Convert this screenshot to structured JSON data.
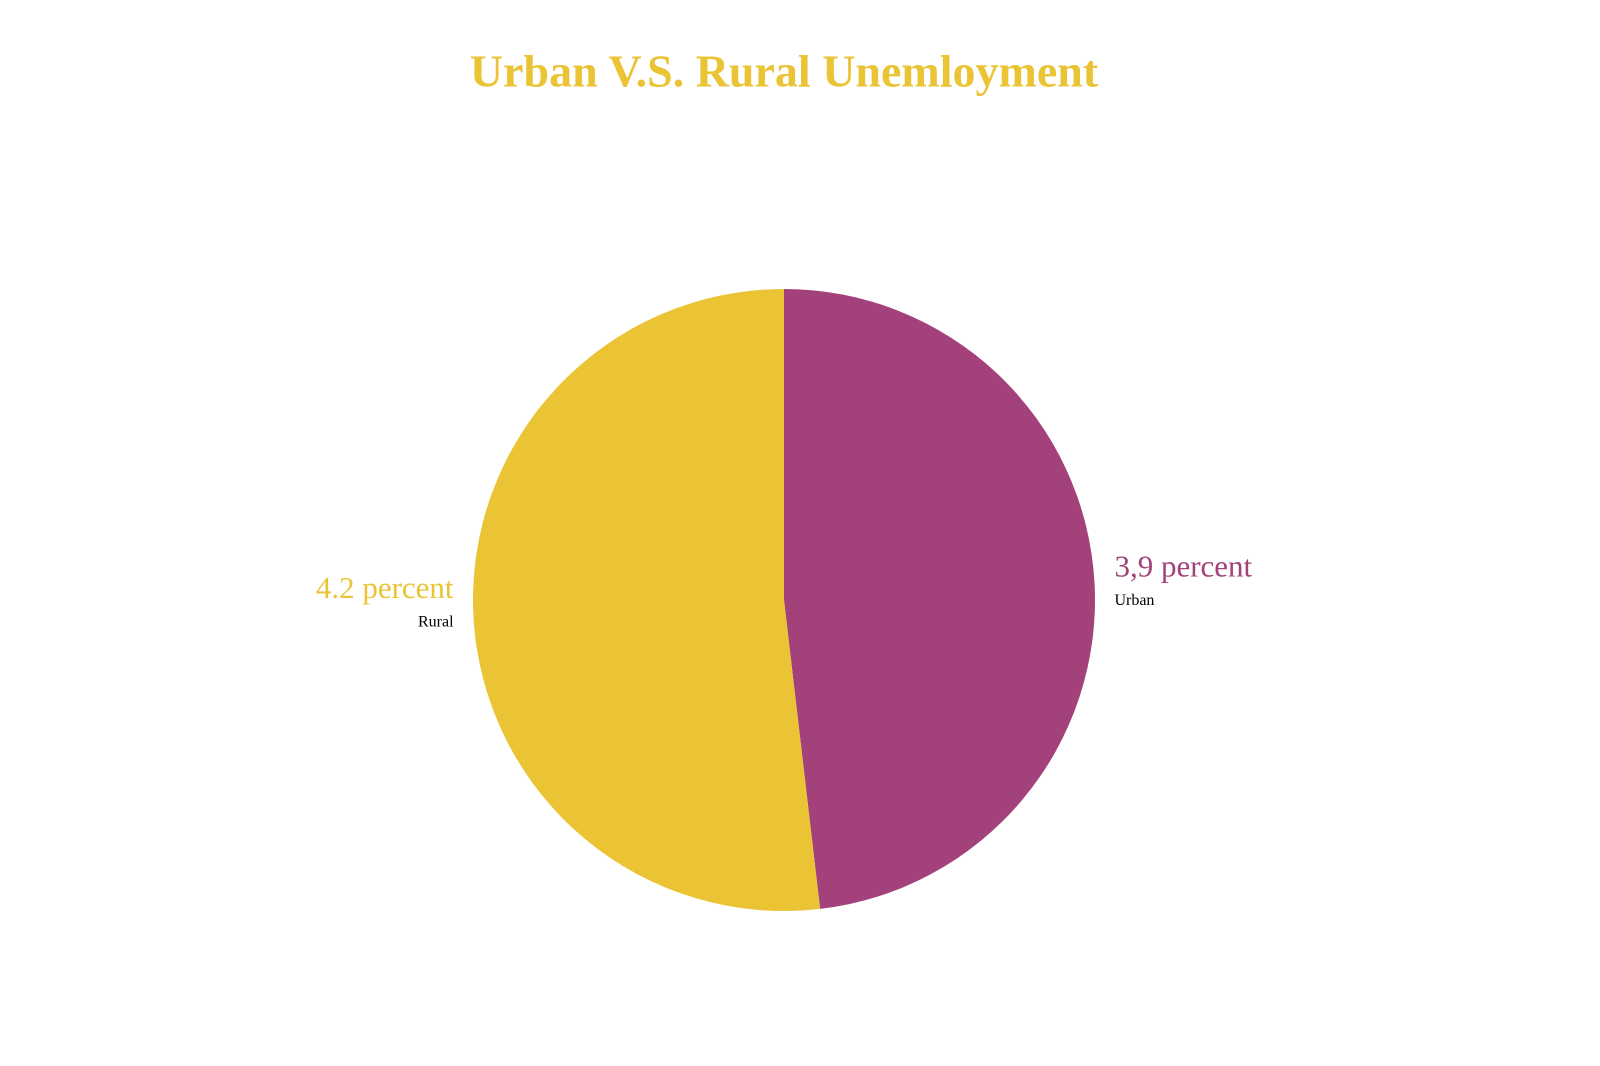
{
  "chart_data": {
    "type": "pie",
    "title": "Urban V.S. Rural Unemloyment",
    "categories": [
      "Urban",
      "Rural"
    ],
    "values": [
      3.9,
      4.2
    ],
    "value_labels": [
      "3,9 percent",
      "4.2 percent"
    ],
    "colors": [
      "#a3427a",
      "#eac435"
    ]
  }
}
